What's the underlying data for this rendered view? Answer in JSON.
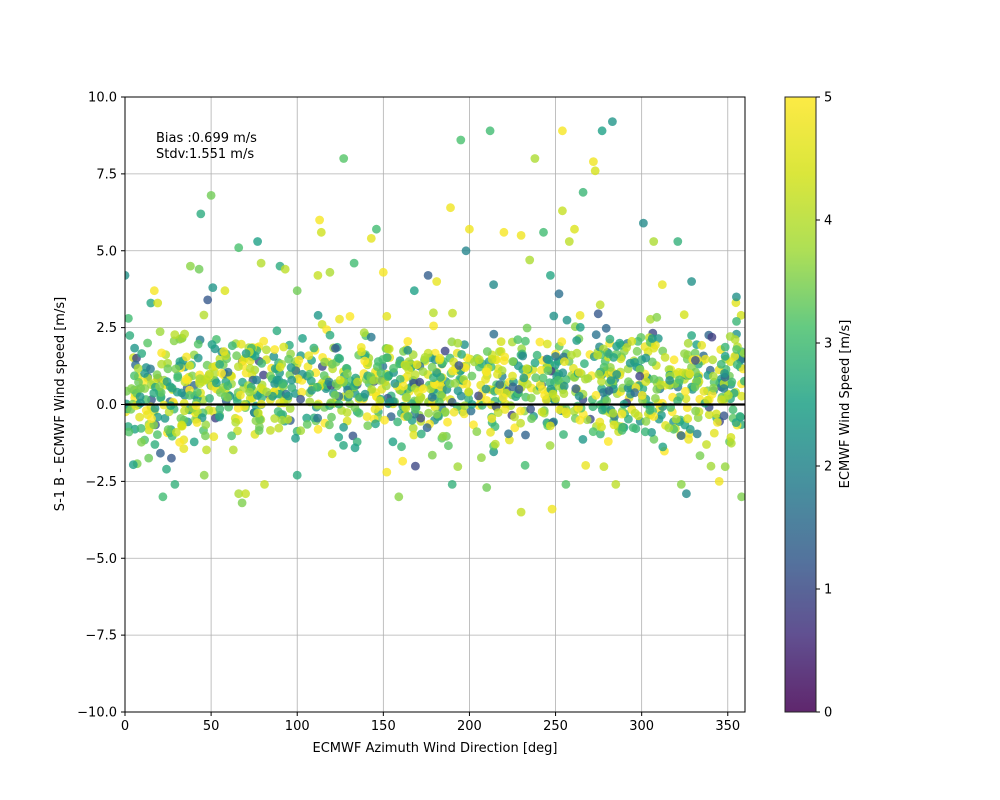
{
  "chart_data": {
    "type": "scatter",
    "title": "",
    "xlabel": "ECMWF Azimuth Wind Direction [deg]",
    "ylabel": "S-1 B - ECMWF Wind speed [m/s]",
    "xlim": [
      0,
      360
    ],
    "ylim": [
      -10.0,
      10.0
    ],
    "x_ticks": [
      "0",
      "50",
      "100",
      "150",
      "200",
      "250",
      "300",
      "350"
    ],
    "y_ticks": [
      "10.0",
      "7.5",
      "5.0",
      "2.5",
      "0.0",
      "−2.5",
      "−5.0",
      "−7.5",
      "−10.0"
    ],
    "grid": true,
    "zero_line": 0.0,
    "colormap": "viridis",
    "colorbar": {
      "label": "ECMWF Wind Speed [m/s]",
      "range": [
        0,
        5
      ],
      "ticks": [
        "0",
        "1",
        "2",
        "3",
        "4",
        "5"
      ]
    },
    "annotation": {
      "line1": "Bias :0.699 m/s",
      "line2": "Stdv:1.551 m/s"
    },
    "approx_point_count": 1400,
    "points": [
      [
        0,
        4.2,
        2.2
      ],
      [
        2,
        2.8,
        3.0
      ],
      [
        17,
        3.7,
        4.9
      ],
      [
        15,
        3.3,
        2.6
      ],
      [
        19,
        3.3,
        4.4
      ],
      [
        38,
        4.5,
        3.6
      ],
      [
        43,
        4.4,
        3.4
      ],
      [
        44,
        6.2,
        2.7
      ],
      [
        50,
        6.8,
        3.4
      ],
      [
        48,
        3.4,
        1.2
      ],
      [
        51,
        3.8,
        2.3
      ],
      [
        58,
        3.7,
        4.5
      ],
      [
        66,
        5.1,
        3.1
      ],
      [
        77,
        5.3,
        2.5
      ],
      [
        79,
        4.6,
        4.0
      ],
      [
        90,
        4.5,
        2.7
      ],
      [
        93,
        4.4,
        4.1
      ],
      [
        100,
        3.7,
        3.4
      ],
      [
        112,
        4.2,
        4.2
      ],
      [
        113,
        6.0,
        4.9
      ],
      [
        114,
        5.6,
        4.3
      ],
      [
        119,
        4.3,
        3.9
      ],
      [
        127,
        8.0,
        3.2
      ],
      [
        133,
        4.6,
        3.0
      ],
      [
        143,
        5.4,
        4.6
      ],
      [
        146,
        5.7,
        3.0
      ],
      [
        150,
        4.3,
        4.9
      ],
      [
        168,
        3.7,
        2.5
      ],
      [
        176,
        4.2,
        1.3
      ],
      [
        181,
        4.0,
        4.7
      ],
      [
        189,
        6.4,
        4.8
      ],
      [
        195,
        8.6,
        3.1
      ],
      [
        198,
        5.0,
        2.0
      ],
      [
        200,
        5.7,
        4.8
      ],
      [
        212,
        8.9,
        3.0
      ],
      [
        214,
        3.9,
        2.1
      ],
      [
        220,
        5.6,
        4.9
      ],
      [
        230,
        5.5,
        4.8
      ],
      [
        235,
        4.7,
        3.9
      ],
      [
        238,
        8.0,
        3.9
      ],
      [
        243,
        5.6,
        3.0
      ],
      [
        247,
        4.2,
        2.6
      ],
      [
        252,
        3.6,
        1.6
      ],
      [
        254,
        8.9,
        4.9
      ],
      [
        254,
        6.3,
        4.2
      ],
      [
        258,
        5.3,
        4.1
      ],
      [
        261,
        5.7,
        4.5
      ],
      [
        266,
        6.9,
        2.9
      ],
      [
        272,
        7.9,
        4.8
      ],
      [
        273,
        7.6,
        4.4
      ],
      [
        277,
        8.9,
        2.5
      ],
      [
        283,
        9.2,
        2.3
      ],
      [
        301,
        5.9,
        2.1
      ],
      [
        307,
        5.3,
        3.9
      ],
      [
        312,
        3.9,
        4.7
      ],
      [
        321,
        5.3,
        2.8
      ],
      [
        329,
        4.0,
        2.2
      ],
      [
        355,
        3.5,
        2.2
      ],
      [
        22,
        -3.0,
        3.0
      ],
      [
        29,
        -2.6,
        2.8
      ],
      [
        46,
        -2.3,
        3.6
      ],
      [
        66,
        -2.9,
        3.9
      ],
      [
        68,
        -3.2,
        3.5
      ],
      [
        70,
        -2.9,
        4.2
      ],
      [
        81,
        -2.6,
        4.2
      ],
      [
        100,
        -2.3,
        2.7
      ],
      [
        152,
        -2.2,
        4.9
      ],
      [
        159,
        -3.0,
        3.6
      ],
      [
        190,
        -2.6,
        2.8
      ],
      [
        210,
        -2.7,
        3.4
      ],
      [
        230,
        -3.5,
        4.2
      ],
      [
        248,
        -3.4,
        4.8
      ],
      [
        256,
        -2.6,
        3.2
      ],
      [
        285,
        -2.6,
        4.1
      ],
      [
        323,
        -2.6,
        3.6
      ],
      [
        326,
        -2.9,
        2.1
      ],
      [
        345,
        -2.5,
        4.8
      ],
      [
        358,
        -3.0,
        3.5
      ]
    ]
  }
}
